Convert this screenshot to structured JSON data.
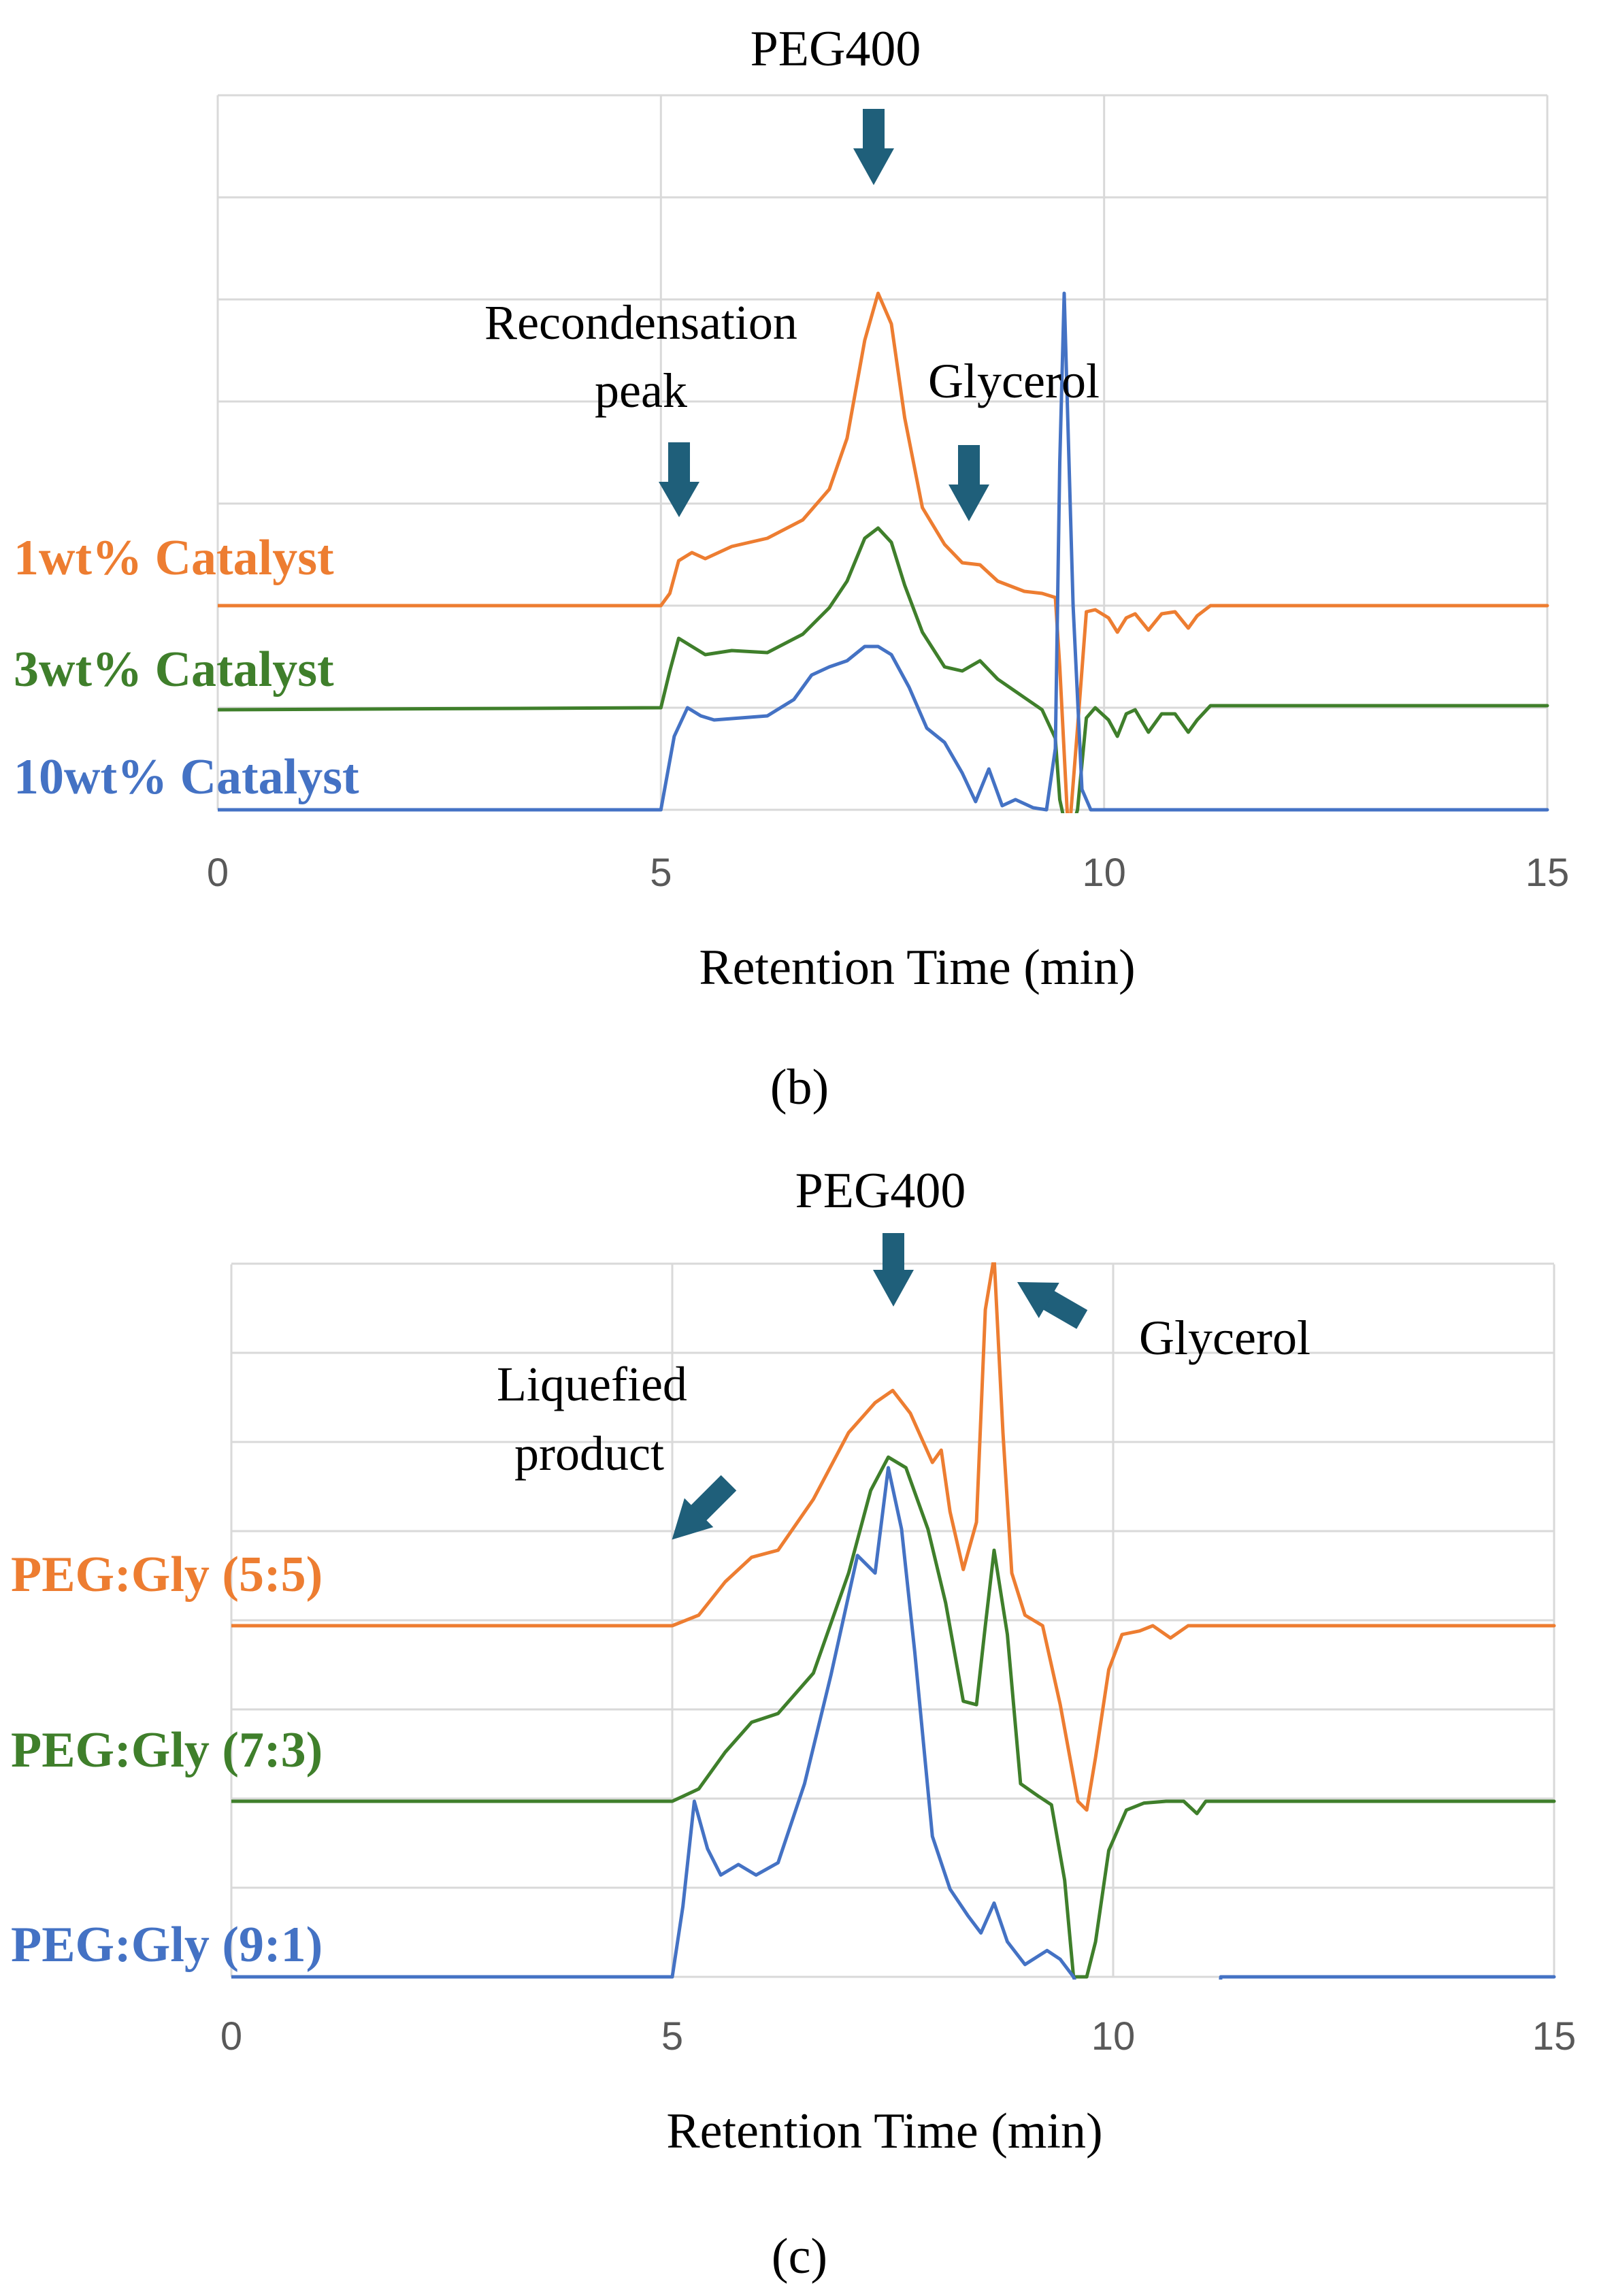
{
  "colors": {
    "orange": "#ed7d31",
    "green": "#3f7f2b",
    "blue": "#4472c4",
    "arrow": "#1f5f7a"
  },
  "chart_data": [
    {
      "id": "b",
      "type": "line",
      "panel_label": "(b)",
      "xlabel": "Retention Time (min)",
      "xlim": [
        0,
        15
      ],
      "x_ticks": [
        "0",
        "5",
        "10",
        "15"
      ],
      "grid": true,
      "y_axis_labels_shown": false,
      "annotations": [
        {
          "text_lines": [
            "PEG400"
          ],
          "x": 7.45
        },
        {
          "text_lines": [
            "Recondensation",
            "peak"
          ],
          "x": 5.2
        },
        {
          "text_lines": [
            "Glycerol"
          ],
          "x": 8.6
        }
      ],
      "series": [
        {
          "name": "1wt% Catalyst",
          "color": "#ed7d31",
          "baseline": 1.0,
          "x": [
            0,
            5.0,
            5.1,
            5.2,
            5.35,
            5.5,
            5.8,
            6.2,
            6.6,
            6.9,
            7.1,
            7.3,
            7.45,
            7.6,
            7.75,
            7.95,
            8.2,
            8.4,
            8.6,
            8.8,
            9.1,
            9.3,
            9.45,
            9.5,
            9.6,
            9.7,
            9.8,
            9.9,
            10.05,
            10.15,
            10.25,
            10.35,
            10.5,
            10.65,
            10.8,
            10.95,
            11.05,
            11.2,
            15
          ],
          "y": [
            1.0,
            1.0,
            1.06,
            1.22,
            1.26,
            1.23,
            1.29,
            1.33,
            1.42,
            1.57,
            1.82,
            2.3,
            2.53,
            2.38,
            1.92,
            1.48,
            1.3,
            1.21,
            1.2,
            1.12,
            1.07,
            1.06,
            1.04,
            0.7,
            -0.15,
            0.4,
            0.97,
            0.98,
            0.94,
            0.87,
            0.94,
            0.96,
            0.88,
            0.96,
            0.97,
            0.89,
            0.95,
            1.0,
            1.0
          ]
        },
        {
          "name": "3wt% Catalyst",
          "color": "#3f7f2b",
          "baseline": 0.5,
          "x": [
            0,
            5.0,
            5.1,
            5.2,
            5.35,
            5.5,
            5.8,
            6.2,
            6.6,
            6.9,
            7.1,
            7.3,
            7.45,
            7.6,
            7.75,
            7.95,
            8.2,
            8.4,
            8.6,
            8.8,
            9.1,
            9.3,
            9.45,
            9.5,
            9.6,
            9.7,
            9.8,
            9.9,
            10.05,
            10.15,
            10.25,
            10.35,
            10.5,
            10.65,
            10.8,
            10.95,
            11.05,
            11.2,
            15
          ],
          "y": [
            0.49,
            0.5,
            0.68,
            0.84,
            0.8,
            0.76,
            0.78,
            0.77,
            0.86,
            0.99,
            1.12,
            1.33,
            1.38,
            1.31,
            1.1,
            0.87,
            0.7,
            0.68,
            0.73,
            0.64,
            0.55,
            0.49,
            0.35,
            0.05,
            -0.15,
            0.0,
            0.45,
            0.5,
            0.44,
            0.36,
            0.47,
            0.49,
            0.38,
            0.47,
            0.47,
            0.38,
            0.44,
            0.51,
            0.51
          ]
        },
        {
          "name": "10wt% Catalyst",
          "color": "#4472c4",
          "baseline": 0.0,
          "x": [
            0,
            5.0,
            5.15,
            5.3,
            5.45,
            5.6,
            5.9,
            6.2,
            6.5,
            6.7,
            6.9,
            7.1,
            7.3,
            7.45,
            7.6,
            7.8,
            8.0,
            8.2,
            8.4,
            8.55,
            8.7,
            8.85,
            9.0,
            9.2,
            9.35,
            9.45,
            9.5,
            9.55,
            9.65,
            9.75,
            9.85,
            10.0,
            15
          ],
          "y": [
            0.0,
            0.0,
            0.36,
            0.5,
            0.46,
            0.44,
            0.45,
            0.46,
            0.54,
            0.66,
            0.7,
            0.73,
            0.8,
            0.8,
            0.76,
            0.6,
            0.4,
            0.33,
            0.18,
            0.04,
            0.2,
            0.02,
            0.05,
            0.01,
            0.0,
            0.3,
            1.7,
            2.53,
            1.0,
            0.1,
            0.0,
            0.0,
            0.0
          ]
        }
      ]
    },
    {
      "id": "c",
      "type": "line",
      "panel_label": "(c)",
      "xlabel": "Retention Time (min)",
      "xlim": [
        0,
        15
      ],
      "x_ticks": [
        "0",
        "5",
        "10",
        "15"
      ],
      "grid": true,
      "y_axis_labels_shown": false,
      "annotations": [
        {
          "text_lines": [
            "PEG400"
          ],
          "x": 7.5
        },
        {
          "text_lines": [
            "Liquefied",
            "product"
          ],
          "x": 5.6
        },
        {
          "text_lines": [
            "Glycerol"
          ],
          "x": 8.7
        }
      ],
      "series": [
        {
          "name": "PEG:Gly (5:5)",
          "color": "#ed7d31",
          "baseline": 2.0,
          "x": [
            0,
            5.0,
            5.3,
            5.6,
            5.9,
            6.2,
            6.6,
            7.0,
            7.3,
            7.5,
            7.7,
            7.95,
            8.05,
            8.15,
            8.3,
            8.45,
            8.55,
            8.65,
            8.75,
            8.85,
            9.0,
            9.2,
            9.4,
            9.6,
            9.7,
            9.8,
            9.95,
            10.1,
            10.3,
            10.45,
            10.65,
            10.85,
            11.05,
            15
          ],
          "y": [
            2.0,
            2.0,
            2.06,
            2.25,
            2.39,
            2.43,
            2.72,
            3.1,
            3.27,
            3.34,
            3.21,
            2.93,
            3.0,
            2.65,
            2.32,
            2.59,
            3.8,
            4.1,
            3.1,
            2.3,
            2.06,
            2.0,
            1.55,
            1.0,
            0.95,
            1.25,
            1.75,
            1.95,
            1.97,
            2.0,
            1.93,
            2.0,
            2.0,
            2.0
          ]
        },
        {
          "name": "PEG:Gly (7:3)",
          "color": "#3f7f2b",
          "baseline": 1.0,
          "x": [
            0,
            5.0,
            5.3,
            5.6,
            5.9,
            6.2,
            6.6,
            7.0,
            7.25,
            7.45,
            7.65,
            7.9,
            8.1,
            8.3,
            8.45,
            8.55,
            8.65,
            8.8,
            8.95,
            9.15,
            9.3,
            9.45,
            9.55,
            9.7,
            9.8,
            9.95,
            10.15,
            10.35,
            10.6,
            10.8,
            10.95,
            11.05,
            15
          ],
          "y": [
            1.0,
            1.0,
            1.07,
            1.28,
            1.45,
            1.5,
            1.73,
            2.3,
            2.77,
            2.96,
            2.9,
            2.55,
            2.13,
            1.57,
            1.55,
            2.0,
            2.43,
            1.95,
            1.1,
            1.03,
            0.98,
            0.55,
            0.0,
            0.0,
            0.2,
            0.72,
            0.95,
            0.99,
            1.0,
            1.0,
            0.93,
            1.0,
            1.0
          ]
        },
        {
          "name": "PEG:Gly (9:1)",
          "color": "#4472c4",
          "baseline": 0.0,
          "x": [
            0,
            5.0,
            5.12,
            5.25,
            5.4,
            5.55,
            5.75,
            5.95,
            6.2,
            6.5,
            6.8,
            7.1,
            7.3,
            7.45,
            7.6,
            7.75,
            7.95,
            8.15,
            8.35,
            8.5,
            8.65,
            8.8,
            9.0,
            9.25,
            9.4,
            9.55,
            9.7,
            9.85,
            11.2,
            11.22,
            15
          ],
          "y": [
            0.0,
            0.0,
            0.4,
            1.0,
            0.73,
            0.58,
            0.64,
            0.58,
            0.65,
            1.1,
            1.72,
            2.4,
            2.3,
            2.9,
            2.55,
            1.85,
            0.8,
            0.5,
            0.35,
            0.25,
            0.42,
            0.2,
            0.07,
            0.15,
            0.1,
            0.0,
            -0.2,
            -0.2,
            -0.2,
            0.0,
            0.0
          ]
        }
      ]
    }
  ]
}
